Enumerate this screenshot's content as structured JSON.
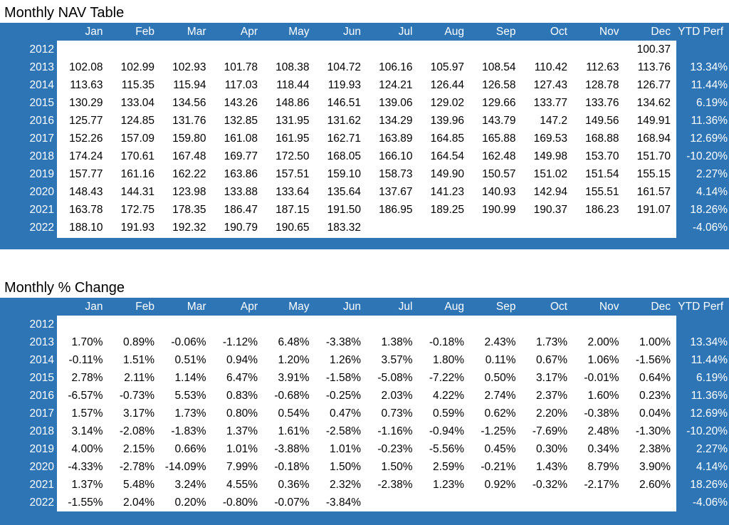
{
  "tables": [
    {
      "title": "Monthly NAV Table",
      "headers": [
        "Jan",
        "Feb",
        "Mar",
        "Apr",
        "May",
        "Jun",
        "Jul",
        "Aug",
        "Sep",
        "Oct",
        "Nov",
        "Dec",
        "YTD Perf"
      ],
      "rows": [
        {
          "year": "2012",
          "values": [
            "",
            "",
            "",
            "",
            "",
            "",
            "",
            "",
            "",
            "",
            "",
            "100.37"
          ],
          "ytd": ""
        },
        {
          "year": "2013",
          "values": [
            "102.08",
            "102.99",
            "102.93",
            "101.78",
            "108.38",
            "104.72",
            "106.16",
            "105.97",
            "108.54",
            "110.42",
            "112.63",
            "113.76"
          ],
          "ytd": "13.34%"
        },
        {
          "year": "2014",
          "values": [
            "113.63",
            "115.35",
            "115.94",
            "117.03",
            "118.44",
            "119.93",
            "124.21",
            "126.44",
            "126.58",
            "127.43",
            "128.78",
            "126.77"
          ],
          "ytd": "11.44%"
        },
        {
          "year": "2015",
          "values": [
            "130.29",
            "133.04",
            "134.56",
            "143.26",
            "148.86",
            "146.51",
            "139.06",
            "129.02",
            "129.66",
            "133.77",
            "133.76",
            "134.62"
          ],
          "ytd": "6.19%"
        },
        {
          "year": "2016",
          "values": [
            "125.77",
            "124.85",
            "131.76",
            "132.85",
            "131.95",
            "131.62",
            "134.29",
            "139.96",
            "143.79",
            "147.2",
            "149.56",
            "149.91"
          ],
          "ytd": "11.36%"
        },
        {
          "year": "2017",
          "values": [
            "152.26",
            "157.09",
            "159.80",
            "161.08",
            "161.95",
            "162.71",
            "163.89",
            "164.85",
            "165.88",
            "169.53",
            "168.88",
            "168.94"
          ],
          "ytd": "12.69%"
        },
        {
          "year": "2018",
          "values": [
            "174.24",
            "170.61",
            "167.48",
            "169.77",
            "172.50",
            "168.05",
            "166.10",
            "164.54",
            "162.48",
            "149.98",
            "153.70",
            "151.70"
          ],
          "ytd": "-10.20%"
        },
        {
          "year": "2019",
          "values": [
            "157.77",
            "161.16",
            "162.22",
            "163.86",
            "157.51",
            "159.10",
            "158.73",
            "149.90",
            "150.57",
            "151.02",
            "151.54",
            "155.15"
          ],
          "ytd": "2.27%"
        },
        {
          "year": "2020",
          "values": [
            "148.43",
            "144.31",
            "123.98",
            "133.88",
            "133.64",
            "135.64",
            "137.67",
            "141.23",
            "140.93",
            "142.94",
            "155.51",
            "161.57"
          ],
          "ytd": "4.14%"
        },
        {
          "year": "2021",
          "values": [
            "163.78",
            "172.75",
            "178.35",
            "186.47",
            "187.15",
            "191.50",
            "186.95",
            "189.25",
            "190.99",
            "190.37",
            "186.23",
            "191.07"
          ],
          "ytd": "18.26%"
        },
        {
          "year": "2022",
          "values": [
            "188.10",
            "191.93",
            "192.32",
            "190.79",
            "190.65",
            "183.32",
            "",
            "",
            "",
            "",
            "",
            ""
          ],
          "ytd": "-4.06%"
        }
      ]
    },
    {
      "title": "Monthly % Change",
      "headers": [
        "Jan",
        "Feb",
        "Mar",
        "Apr",
        "May",
        "Jun",
        "Jul",
        "Aug",
        "Sep",
        "Oct",
        "Nov",
        "Dec",
        "YTD Perf"
      ],
      "rows": [
        {
          "year": "2012",
          "values": [
            "",
            "",
            "",
            "",
            "",
            "",
            "",
            "",
            "",
            "",
            "",
            ""
          ],
          "ytd": ""
        },
        {
          "year": "2013",
          "values": [
            "1.70%",
            "0.89%",
            "-0.06%",
            "-1.12%",
            "6.48%",
            "-3.38%",
            "1.38%",
            "-0.18%",
            "2.43%",
            "1.73%",
            "2.00%",
            "1.00%"
          ],
          "ytd": "13.34%"
        },
        {
          "year": "2014",
          "values": [
            "-0.11%",
            "1.51%",
            "0.51%",
            "0.94%",
            "1.20%",
            "1.26%",
            "3.57%",
            "1.80%",
            "0.11%",
            "0.67%",
            "1.06%",
            "-1.56%"
          ],
          "ytd": "11.44%"
        },
        {
          "year": "2015",
          "values": [
            "2.78%",
            "2.11%",
            "1.14%",
            "6.47%",
            "3.91%",
            "-1.58%",
            "-5.08%",
            "-7.22%",
            "0.50%",
            "3.17%",
            "-0.01%",
            "0.64%"
          ],
          "ytd": "6.19%"
        },
        {
          "year": "2016",
          "values": [
            "-6.57%",
            "-0.73%",
            "5.53%",
            "0.83%",
            "-0.68%",
            "-0.25%",
            "2.03%",
            "4.22%",
            "2.74%",
            "2.37%",
            "1.60%",
            "0.23%"
          ],
          "ytd": "11.36%"
        },
        {
          "year": "2017",
          "values": [
            "1.57%",
            "3.17%",
            "1.73%",
            "0.80%",
            "0.54%",
            "0.47%",
            "0.73%",
            "0.59%",
            "0.62%",
            "2.20%",
            "-0.38%",
            "0.04%"
          ],
          "ytd": "12.69%"
        },
        {
          "year": "2018",
          "values": [
            "3.14%",
            "-2.08%",
            "-1.83%",
            "1.37%",
            "1.61%",
            "-2.58%",
            "-1.16%",
            "-0.94%",
            "-1.25%",
            "-7.69%",
            "2.48%",
            "-1.30%"
          ],
          "ytd": "-10.20%"
        },
        {
          "year": "2019",
          "values": [
            "4.00%",
            "2.15%",
            "0.66%",
            "1.01%",
            "-3.88%",
            "1.01%",
            "-0.23%",
            "-5.56%",
            "0.45%",
            "0.30%",
            "0.34%",
            "2.38%"
          ],
          "ytd": "2.27%"
        },
        {
          "year": "2020",
          "values": [
            "-4.33%",
            "-2.78%",
            "-14.09%",
            "7.99%",
            "-0.18%",
            "1.50%",
            "1.50%",
            "2.59%",
            "-0.21%",
            "1.43%",
            "8.79%",
            "3.90%"
          ],
          "ytd": "4.14%"
        },
        {
          "year": "2021",
          "values": [
            "1.37%",
            "5.48%",
            "3.24%",
            "4.55%",
            "0.36%",
            "2.32%",
            "-2.38%",
            "1.23%",
            "0.92%",
            "-0.32%",
            "-2.17%",
            "2.60%"
          ],
          "ytd": "18.26%"
        },
        {
          "year": "2022",
          "values": [
            "-1.55%",
            "2.04%",
            "0.20%",
            "-0.80%",
            "-0.07%",
            "-3.84%",
            "",
            "",
            "",
            "",
            "",
            ""
          ],
          "ytd": "-4.06%"
        }
      ]
    }
  ],
  "colors": {
    "header_bg": "#2e75b6",
    "header_text": "#ffffff",
    "cell_bg": "#ffffff"
  }
}
